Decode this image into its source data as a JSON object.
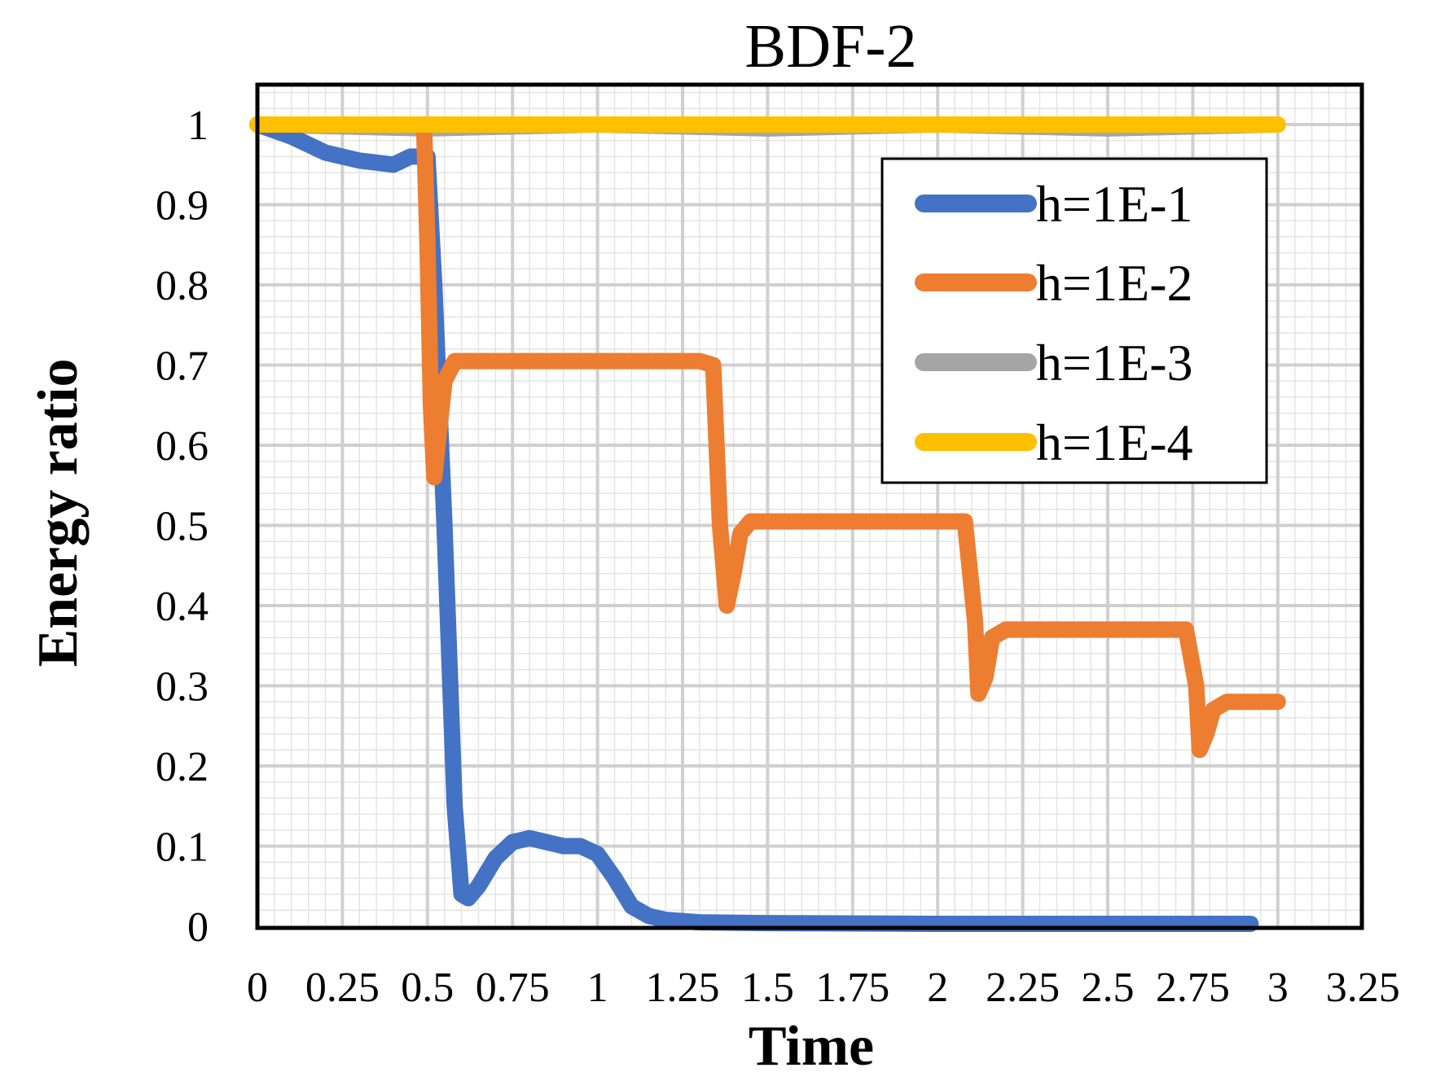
{
  "chart_data": {
    "type": "line",
    "title": "BDF-2",
    "xlabel": "Time",
    "ylabel": "Energy ratio",
    "xlim": [
      0,
      3.25
    ],
    "ylim": [
      0,
      1
    ],
    "xticks": [
      "0",
      "0.25",
      "0.5",
      "0.75",
      "1",
      "1.25",
      "1.5",
      "1.75",
      "2",
      "2.25",
      "2.5",
      "2.75",
      "3",
      "3.25"
    ],
    "yticks": [
      "0",
      "0.1",
      "0.2",
      "0.3",
      "0.4",
      "0.5",
      "0.6",
      "0.7",
      "0.8",
      "0.9",
      "1"
    ],
    "grid": true,
    "legend_position": "top-right",
    "series": [
      {
        "name": "h=1E-1",
        "color": "#4472C4",
        "x": [
          0,
          0.1,
          0.2,
          0.3,
          0.4,
          0.45,
          0.5,
          0.52,
          0.55,
          0.58,
          0.6,
          0.62,
          0.65,
          0.7,
          0.75,
          0.8,
          0.85,
          0.9,
          0.95,
          1.0,
          1.05,
          1.1,
          1.15,
          1.2,
          1.3,
          1.5,
          2.0,
          2.5,
          2.92
        ],
        "y": [
          1.0,
          0.985,
          0.965,
          0.955,
          0.95,
          0.96,
          0.96,
          0.8,
          0.5,
          0.15,
          0.04,
          0.035,
          0.05,
          0.085,
          0.105,
          0.11,
          0.105,
          0.1,
          0.1,
          0.09,
          0.06,
          0.025,
          0.013,
          0.008,
          0.005,
          0.004,
          0.003,
          0.003,
          0.003
        ]
      },
      {
        "name": "h=1E-2",
        "color": "#ED7D31",
        "x": [
          0.49,
          0.5,
          0.51,
          0.52,
          0.53,
          0.55,
          0.58,
          0.7,
          1.0,
          1.3,
          1.34,
          1.36,
          1.38,
          1.4,
          1.42,
          1.45,
          1.6,
          1.8,
          2.08,
          2.11,
          2.12,
          2.14,
          2.16,
          2.2,
          2.4,
          2.73,
          2.76,
          2.77,
          2.79,
          2.81,
          2.85,
          3.0
        ],
        "y": [
          1.0,
          0.85,
          0.65,
          0.56,
          0.6,
          0.68,
          0.705,
          0.705,
          0.705,
          0.705,
          0.7,
          0.5,
          0.4,
          0.44,
          0.49,
          0.505,
          0.505,
          0.505,
          0.505,
          0.38,
          0.29,
          0.31,
          0.36,
          0.37,
          0.37,
          0.37,
          0.3,
          0.22,
          0.24,
          0.27,
          0.28,
          0.28
        ]
      },
      {
        "name": "h=1E-3",
        "color": "#A5A5A5",
        "x": [
          0,
          0.5,
          1.0,
          1.5,
          2.0,
          2.5,
          3.0
        ],
        "y": [
          1.0,
          0.995,
          1.0,
          0.995,
          1.0,
          0.995,
          1.0
        ]
      },
      {
        "name": "h=1E-4",
        "color": "#FFC000",
        "x": [
          0,
          0.5,
          1.0,
          1.5,
          2.0,
          2.5,
          3.0
        ],
        "y": [
          1.0,
          1.0,
          1.0,
          1.0,
          1.0,
          1.0,
          1.0
        ]
      }
    ]
  }
}
